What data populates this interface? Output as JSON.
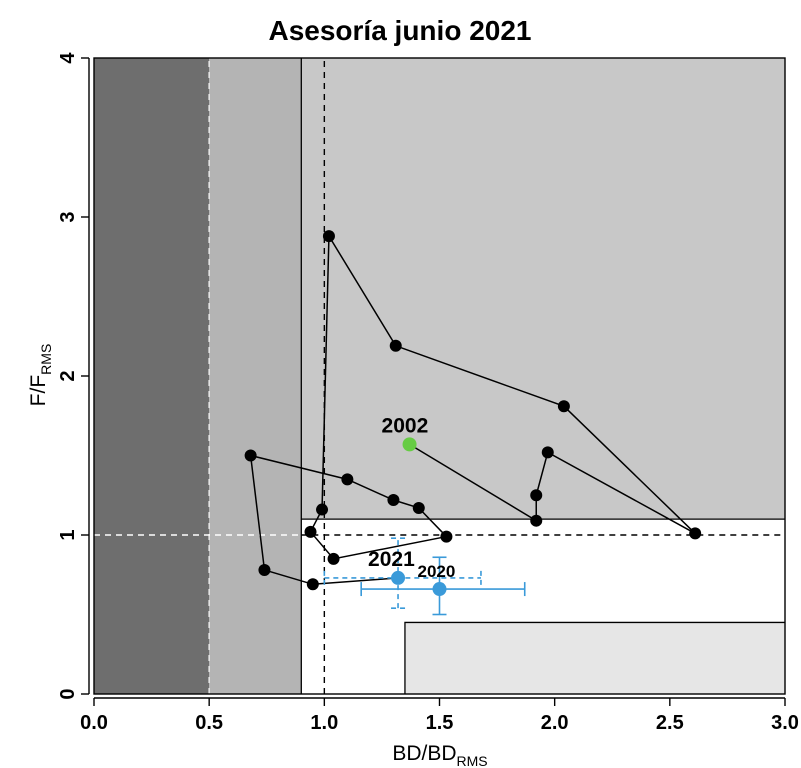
{
  "chart_data": {
    "type": "scatter",
    "title": "Asesoría junio 2021",
    "xlabel": {
      "main": "BD/BD",
      "sub": "RMS"
    },
    "ylabel": {
      "main": "F/F",
      "sub": "RMS"
    },
    "xlim": [
      0,
      3.0
    ],
    "ylim": [
      0,
      4
    ],
    "x_ticks": [
      "0.0",
      "0.5",
      "1.0",
      "1.5",
      "2.0",
      "2.5",
      "3.0"
    ],
    "y_ticks": [
      "0",
      "1",
      "2",
      "3",
      "4"
    ],
    "zones": {
      "colors": {
        "collapse": "#6e6e6e",
        "depleted": "#b4b4b4",
        "overexploited": "#c8c8c8",
        "full": "#ffffff",
        "underexploited": "#e6e6e6"
      },
      "thresholds": {
        "x_collapse": 0.5,
        "x_depleted": 0.9,
        "x_full_upper": 1.35,
        "y_overfishing": 1.1,
        "y_under": 0.45
      }
    },
    "reference_lines": {
      "x": [
        0.5,
        1.0
      ],
      "y": [
        1.0
      ]
    },
    "trajectory": {
      "color": "#000000",
      "points": [
        {
          "x": 1.37,
          "y": 1.57
        },
        {
          "x": 1.92,
          "y": 1.09
        },
        {
          "x": 1.92,
          "y": 1.25
        },
        {
          "x": 1.97,
          "y": 1.52
        },
        {
          "x": 2.61,
          "y": 1.01
        },
        {
          "x": 2.04,
          "y": 1.81
        },
        {
          "x": 1.31,
          "y": 2.19
        },
        {
          "x": 1.02,
          "y": 2.88
        },
        {
          "x": 0.99,
          "y": 1.16
        },
        {
          "x": 0.94,
          "y": 1.02
        },
        {
          "x": 1.04,
          "y": 0.85
        },
        {
          "x": 1.53,
          "y": 0.99
        },
        {
          "x": 1.41,
          "y": 1.17
        },
        {
          "x": 1.3,
          "y": 1.22
        },
        {
          "x": 1.1,
          "y": 1.35
        },
        {
          "x": 0.68,
          "y": 1.5
        },
        {
          "x": 0.74,
          "y": 0.78
        },
        {
          "x": 0.95,
          "y": 0.69
        },
        {
          "x": 1.32,
          "y": 0.73
        }
      ]
    },
    "labeled_points": [
      {
        "label": "2002",
        "x": 1.37,
        "y": 1.57,
        "color": "#66cc44"
      },
      {
        "label": "2021",
        "x": 1.32,
        "y": 0.73,
        "color": "#3a9ad9",
        "xerr": [
          1.0,
          1.68
        ],
        "yerr": [
          0.54,
          0.98
        ],
        "dashed": true
      },
      {
        "label": "2020",
        "x": 1.5,
        "y": 0.66,
        "color": "#3a9ad9",
        "xerr": [
          1.16,
          1.87
        ],
        "yerr": [
          0.5,
          0.86
        ],
        "dashed": false
      }
    ],
    "grid": false,
    "legend": "none"
  }
}
